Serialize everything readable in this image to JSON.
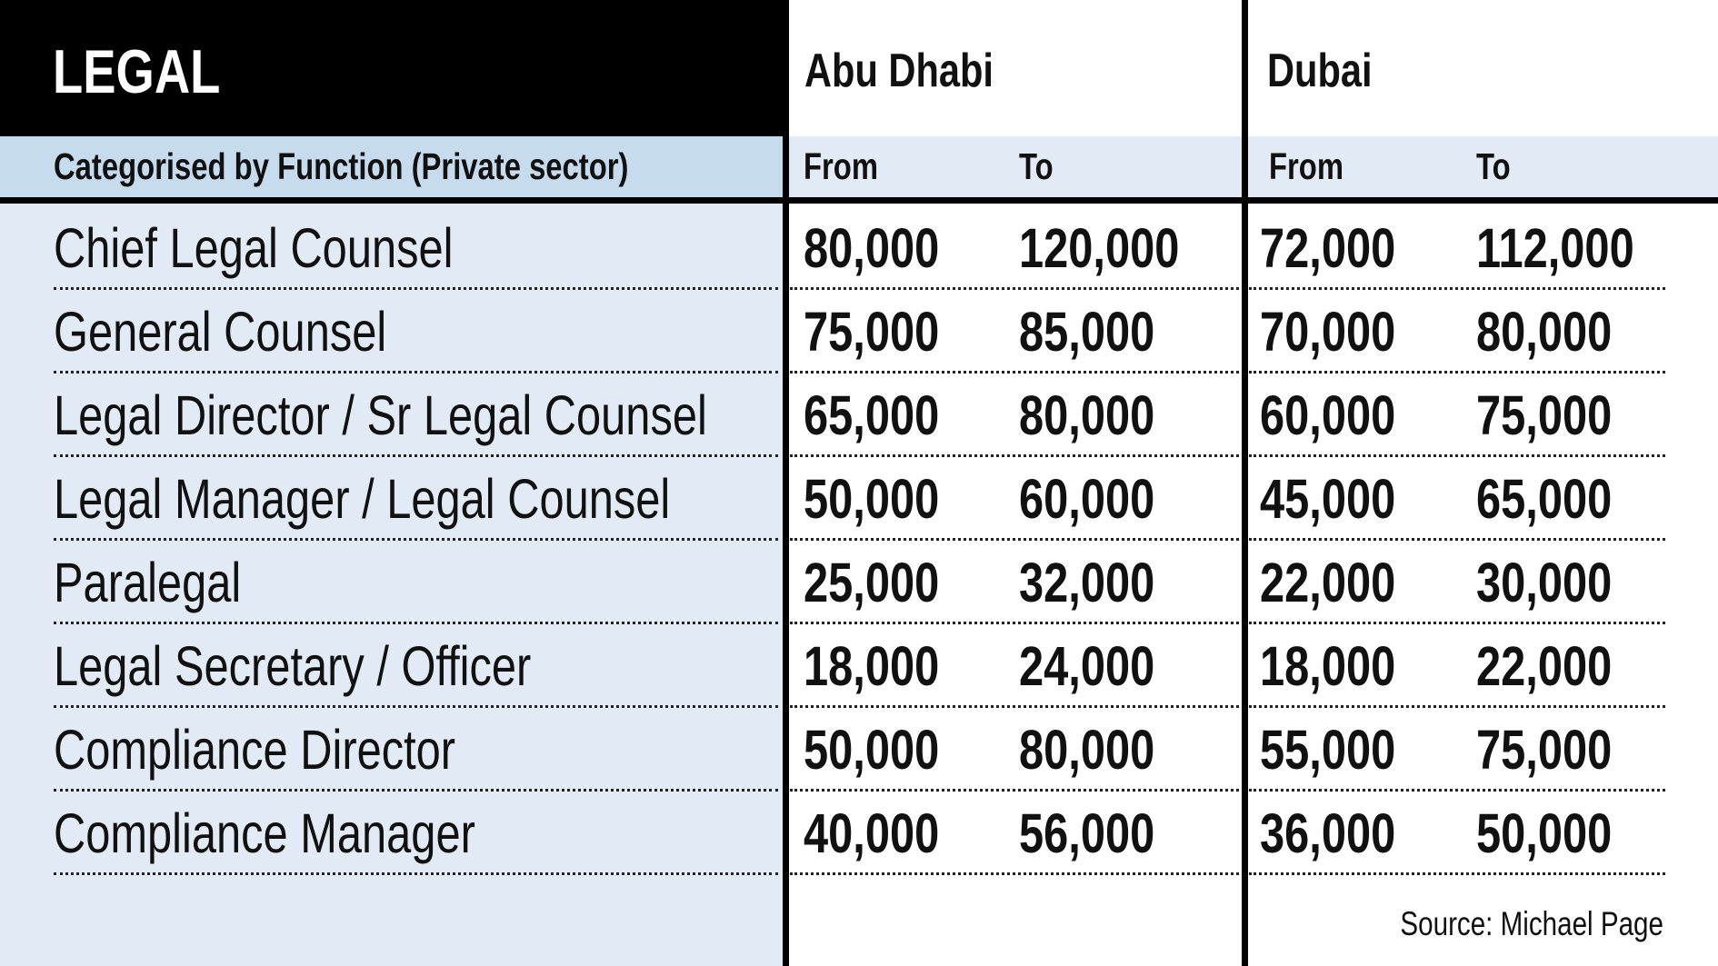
{
  "title": "LEGAL",
  "regions": [
    "Abu Dhabi",
    "Dubai"
  ],
  "subheader": {
    "category_label": "Categorised by Function (Private sector)",
    "from_label": "From",
    "to_label": "To"
  },
  "rows": [
    {
      "role": "Chief Legal Counsel",
      "abu_dhabi_from": "80,000",
      "abu_dhabi_to": "120,000",
      "dubai_from": "72,000",
      "dubai_to": "112,000"
    },
    {
      "role": "General Counsel",
      "abu_dhabi_from": "75,000",
      "abu_dhabi_to": "85,000",
      "dubai_from": "70,000",
      "dubai_to": "80,000"
    },
    {
      "role": "Legal Director / Sr Legal Counsel",
      "abu_dhabi_from": "65,000",
      "abu_dhabi_to": "80,000",
      "dubai_from": "60,000",
      "dubai_to": "75,000"
    },
    {
      "role": "Legal Manager / Legal Counsel",
      "abu_dhabi_from": "50,000",
      "abu_dhabi_to": "60,000",
      "dubai_from": "45,000",
      "dubai_to": "65,000"
    },
    {
      "role": "Paralegal",
      "abu_dhabi_from": "25,000",
      "abu_dhabi_to": "32,000",
      "dubai_from": "22,000",
      "dubai_to": "30,000"
    },
    {
      "role": "Legal Secretary / Officer",
      "abu_dhabi_from": "18,000",
      "abu_dhabi_to": "24,000",
      "dubai_from": "18,000",
      "dubai_to": "22,000"
    },
    {
      "role": "Compliance Director",
      "abu_dhabi_from": "50,000",
      "abu_dhabi_to": "80,000",
      "dubai_from": "55,000",
      "dubai_to": "75,000"
    },
    {
      "role": "Compliance Manager",
      "abu_dhabi_from": "40,000",
      "abu_dhabi_to": "56,000",
      "dubai_from": "36,000",
      "dubai_to": "50,000"
    }
  ],
  "source": "Source: Michael Page",
  "colors": {
    "title_bg": "#000000",
    "label_panel_bg": "#e2eaf5",
    "subheader_bg": "#c7dbee",
    "rule_color": "#000000"
  }
}
